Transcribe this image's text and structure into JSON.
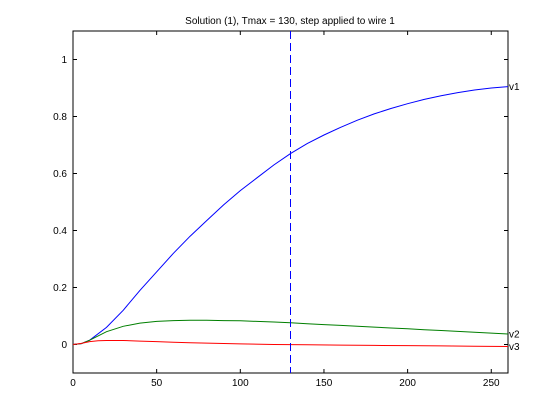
{
  "chart_data": {
    "type": "line",
    "title": "Solution (1), Tmax = 130, step applied to wire 1",
    "xlabel": "",
    "ylabel": "",
    "xlim": [
      0,
      260
    ],
    "ylim": [
      -0.1,
      1.1
    ],
    "xticks": [
      0,
      50,
      100,
      150,
      200,
      250
    ],
    "yticks": [
      0,
      0.2,
      0.4,
      0.6,
      0.8,
      1
    ],
    "ytick_labels": [
      "0",
      "0.2",
      "0.4",
      "0.6",
      "0.8",
      "1"
    ],
    "grid": false,
    "legend": "none",
    "vline": {
      "x": 130,
      "color": "#0000ff",
      "style": "dashed"
    },
    "series": [
      {
        "name": "v1",
        "color": "#0000ff",
        "x": [
          0,
          5,
          10,
          20,
          30,
          40,
          50,
          60,
          70,
          80,
          90,
          100,
          110,
          120,
          130,
          140,
          150,
          160,
          170,
          180,
          190,
          200,
          210,
          220,
          230,
          240,
          250,
          260
        ],
        "y": [
          0,
          0.003,
          0.015,
          0.06,
          0.12,
          0.19,
          0.255,
          0.32,
          0.38,
          0.435,
          0.49,
          0.54,
          0.585,
          0.63,
          0.67,
          0.705,
          0.735,
          0.762,
          0.787,
          0.809,
          0.828,
          0.845,
          0.86,
          0.873,
          0.884,
          0.893,
          0.9,
          0.905
        ]
      },
      {
        "name": "v2",
        "color": "#007f00",
        "x": [
          0,
          5,
          10,
          20,
          30,
          40,
          50,
          60,
          70,
          80,
          90,
          100,
          110,
          120,
          130,
          140,
          150,
          160,
          170,
          180,
          190,
          200,
          210,
          220,
          230,
          240,
          250,
          260
        ],
        "y": [
          0,
          0.003,
          0.015,
          0.045,
          0.064,
          0.075,
          0.081,
          0.084,
          0.085,
          0.085,
          0.084,
          0.083,
          0.081,
          0.079,
          0.076,
          0.073,
          0.07,
          0.067,
          0.064,
          0.061,
          0.058,
          0.055,
          0.052,
          0.049,
          0.046,
          0.043,
          0.04,
          0.037
        ]
      },
      {
        "name": "v3",
        "color": "#ff0000",
        "x": [
          0,
          5,
          10,
          15,
          20,
          30,
          40,
          50,
          60,
          70,
          80,
          100,
          120,
          140,
          160,
          180,
          200,
          220,
          240,
          260
        ],
        "y": [
          0,
          0.004,
          0.01,
          0.013,
          0.014,
          0.014,
          0.012,
          0.01,
          0.008,
          0.006,
          0.005,
          0.002,
          0.0,
          -0.001,
          -0.002,
          -0.003,
          -0.004,
          -0.005,
          -0.006,
          -0.007
        ]
      }
    ]
  }
}
